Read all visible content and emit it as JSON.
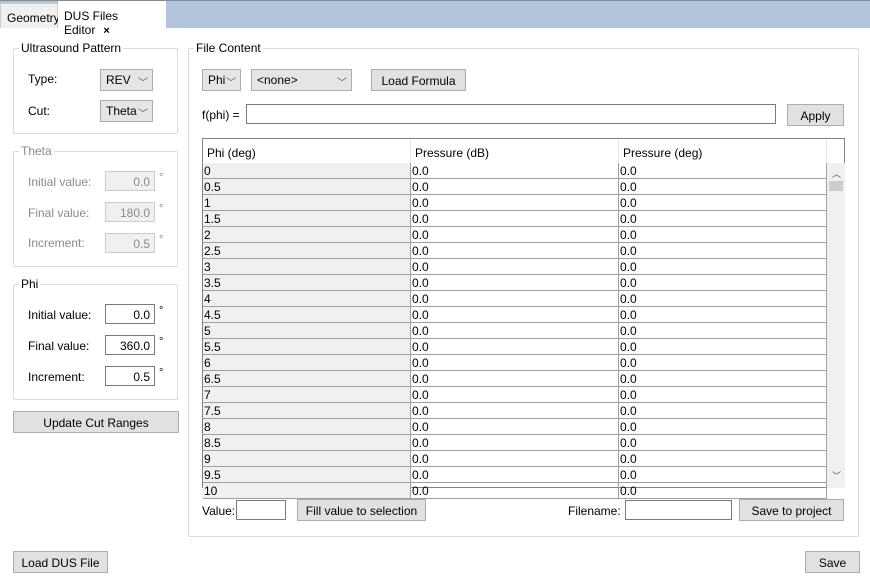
{
  "tabs": [
    {
      "label": "Geometry"
    },
    {
      "label": "DUS Files Editor",
      "close": "×"
    }
  ],
  "ultrasound": {
    "title": "Ultrasound Pattern",
    "type_label": "Type:",
    "type_value": "REV",
    "cut_label": "Cut:",
    "cut_value": "Theta"
  },
  "theta": {
    "title": "Theta",
    "initial_label": "Initial value:",
    "initial": "0.0",
    "final_label": "Final value:",
    "final": "180.0",
    "increment_label": "Increment:",
    "increment": "0.5",
    "unit": "°"
  },
  "phi": {
    "title": "Phi",
    "initial_label": "Initial value:",
    "initial": "0.0",
    "final_label": "Final value:",
    "final": "360.0",
    "increment_label": "Increment:",
    "increment": "0.5",
    "unit": "°"
  },
  "update_button": "Update Cut Ranges",
  "load_button": "Load DUS File",
  "save_button": "Save",
  "file_content": {
    "title": "File Content",
    "axis_select": "Phi",
    "formula_select": "<none>",
    "load_formula": "Load Formula",
    "formula_label": "f(phi) =",
    "formula_value": "",
    "apply": "Apply",
    "columns": [
      "Phi (deg)",
      "Pressure (dB)",
      "Pressure (deg)"
    ],
    "rows": [
      [
        "0",
        "0.0",
        "0.0"
      ],
      [
        "0.5",
        "0.0",
        "0.0"
      ],
      [
        "1",
        "0.0",
        "0.0"
      ],
      [
        "1.5",
        "0.0",
        "0.0"
      ],
      [
        "2",
        "0.0",
        "0.0"
      ],
      [
        "2.5",
        "0.0",
        "0.0"
      ],
      [
        "3",
        "0.0",
        "0.0"
      ],
      [
        "3.5",
        "0.0",
        "0.0"
      ],
      [
        "4",
        "0.0",
        "0.0"
      ],
      [
        "4.5",
        "0.0",
        "0.0"
      ],
      [
        "5",
        "0.0",
        "0.0"
      ],
      [
        "5.5",
        "0.0",
        "0.0"
      ],
      [
        "6",
        "0.0",
        "0.0"
      ],
      [
        "6.5",
        "0.0",
        "0.0"
      ],
      [
        "7",
        "0.0",
        "0.0"
      ],
      [
        "7.5",
        "0.0",
        "0.0"
      ],
      [
        "8",
        "0.0",
        "0.0"
      ],
      [
        "8.5",
        "0.0",
        "0.0"
      ],
      [
        "9",
        "0.0",
        "0.0"
      ],
      [
        "9.5",
        "0.0",
        "0.0"
      ],
      [
        "10",
        "0.0",
        "0.0"
      ]
    ],
    "value_label": "Value:",
    "value": "",
    "fill_button": "Fill value to selection",
    "filename_label": "Filename:",
    "filename": "",
    "save_project": "Save to project"
  }
}
